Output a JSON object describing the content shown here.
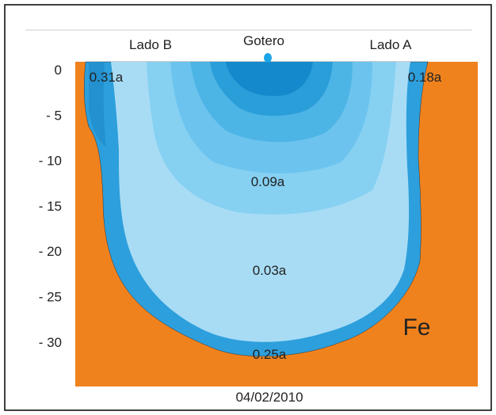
{
  "labels": {
    "side_b": "Lado B",
    "dripper": "Gotero",
    "side_a": "Lado A"
  },
  "y_axis": {
    "ticks": [
      "0",
      "- 5",
      "- 10",
      "- 15",
      "- 20",
      "- 25",
      "- 30"
    ]
  },
  "annotations": [
    "0.31a",
    "0.18a",
    "0.09a",
    "0.03a",
    "0.25a",
    "Fe"
  ],
  "date": "04/02/2010"
}
